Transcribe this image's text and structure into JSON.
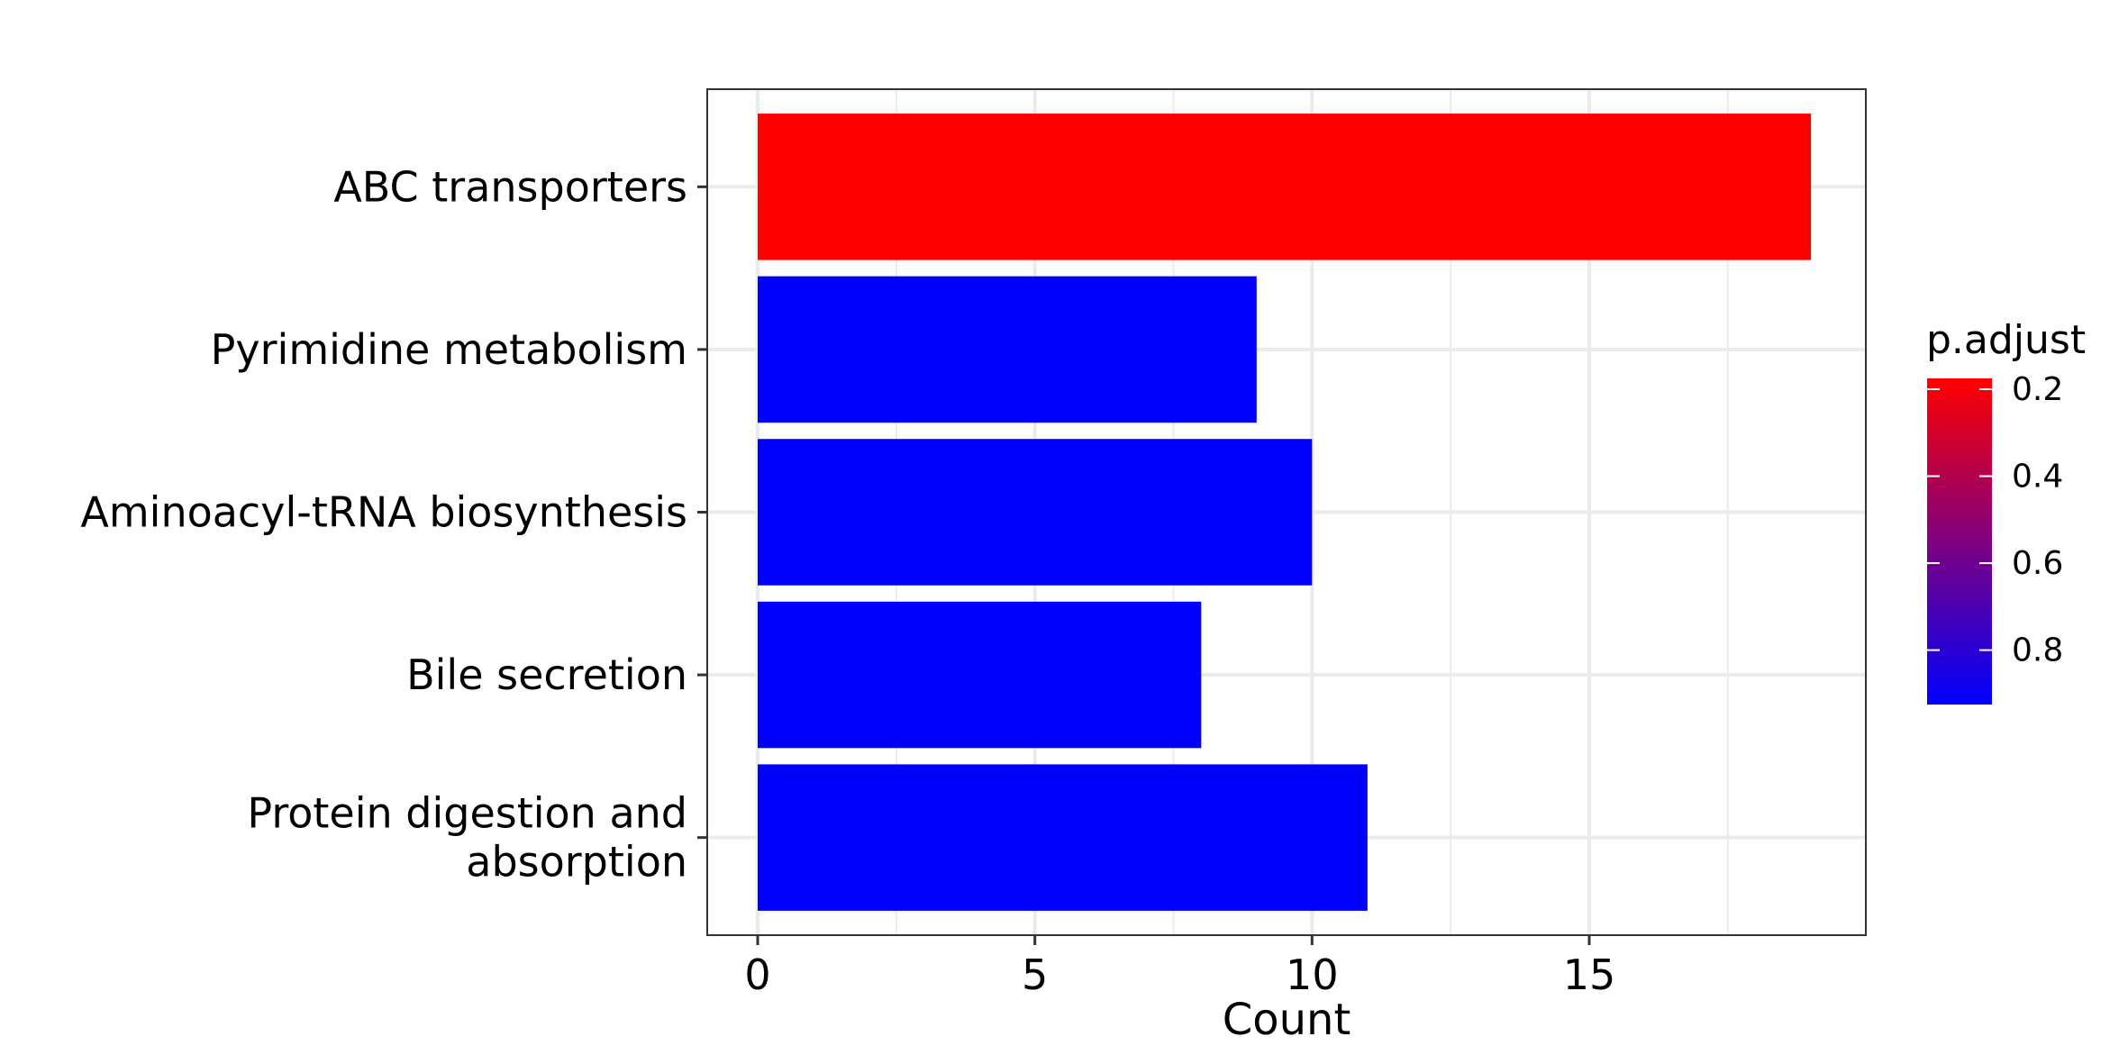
{
  "chart_data": {
    "type": "bar",
    "orientation": "horizontal",
    "title": "",
    "xlabel": "Count",
    "ylabel": "",
    "xlim": [
      -0.95,
      19.95
    ],
    "x_ticks": [
      0,
      5,
      10,
      15
    ],
    "grid": true,
    "categories": [
      {
        "lines": [
          "ABC transporters"
        ],
        "value": 19,
        "p_adjust": 0.2,
        "color": "#ff0000"
      },
      {
        "lines": [
          "Pyrimidine metabolism"
        ],
        "value": 9,
        "p_adjust": 0.95,
        "color": "#0000ff"
      },
      {
        "lines": [
          "Aminoacyl-tRNA biosynthesis"
        ],
        "value": 10,
        "p_adjust": 0.95,
        "color": "#0000ff"
      },
      {
        "lines": [
          "Bile secretion"
        ],
        "value": 8,
        "p_adjust": 0.95,
        "color": "#0000ff"
      },
      {
        "lines": [
          "Protein digestion and",
          "absorption"
        ],
        "value": 11,
        "p_adjust": 0.95,
        "color": "#0000ff"
      }
    ],
    "legend": {
      "title": "p.adjust",
      "placement": "right",
      "ticks": [
        0.2,
        0.4,
        0.6,
        0.8
      ],
      "range": [
        0.2,
        0.95
      ],
      "color_low": "#ff0000",
      "color_high": "#0000ff"
    }
  }
}
